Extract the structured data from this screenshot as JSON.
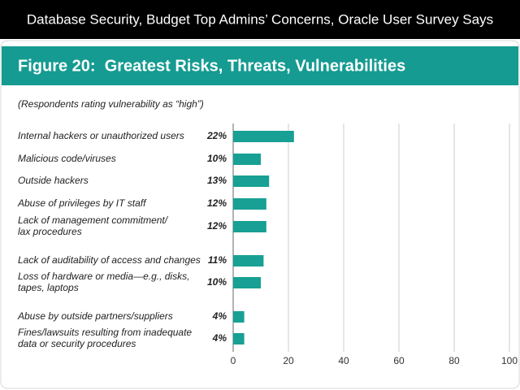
{
  "page_title": "Database Security, Budget Top Admins’ Concerns, Oracle User Survey Says",
  "chart_data": {
    "type": "bar",
    "orientation": "horizontal",
    "title": "Figure 20:  Greatest Risks, Threats, Vulnerabilities",
    "subtitle": "(Respondents rating vulnerability as “high”)",
    "categories": [
      "Internal hackers or unauthorized users",
      "Malicious code/viruses",
      "Outside hackers",
      "Abuse of privileges by IT staff",
      "Lack of management commitment/\nlax procedures",
      "Lack of auditability of access and changes",
      "Loss of hardware or media—e.g., disks,\ntapes, laptops",
      "Abuse by outside partners/suppliers",
      "Fines/lawsuits resulting from inadequate\ndata or security procedures"
    ],
    "values": [
      22,
      10,
      13,
      12,
      12,
      11,
      10,
      4,
      4
    ],
    "value_labels": [
      "22%",
      "10%",
      "13%",
      "12%",
      "12%",
      "11%",
      "10%",
      "4%",
      "4%"
    ],
    "color": "#17a093",
    "xlim": [
      0,
      100
    ],
    "xticks": [
      0,
      20,
      40,
      60,
      80,
      100
    ],
    "grid": true
  }
}
